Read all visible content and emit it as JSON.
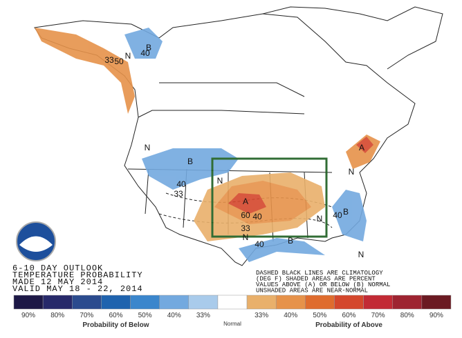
{
  "header": {
    "lines": [
      "6-10 DAY OUTLOOK",
      "TEMPERATURE PROBABILITY",
      "MADE 12 MAY 2014",
      "VALID MAY 18 - 22, 2014"
    ]
  },
  "note": {
    "lines": [
      "DASHED BLACK LINES ARE CLIMATOLOGY",
      "(DEG F) SHADED AREAS ARE PERCENT",
      "VALUES ABOVE (A) OR BELOW (B) NORMAL",
      "UNSHADED AREAS ARE NEAR-NORMAL"
    ]
  },
  "map_labels": [
    "N",
    "B",
    "33",
    "50",
    "40",
    "B",
    "N",
    "40",
    "33",
    "N",
    "A",
    "60",
    "40",
    "33",
    "N",
    "B",
    "40",
    "N",
    "A",
    "N",
    "B",
    "40",
    "N"
  ],
  "legend": {
    "below": [
      {
        "label": "90%",
        "color": "#1d1846"
      },
      {
        "label": "80%",
        "color": "#27296a"
      },
      {
        "label": "70%",
        "color": "#2b4b8e"
      },
      {
        "label": "60%",
        "color": "#1f63ae"
      },
      {
        "label": "50%",
        "color": "#3b86cc"
      },
      {
        "label": "40%",
        "color": "#73a9df"
      },
      {
        "label": "33%",
        "color": "#a9cbeb"
      }
    ],
    "normal": {
      "label": "Normal",
      "color": "#ffffff"
    },
    "above": [
      {
        "label": "33%",
        "color": "#e9b06b"
      },
      {
        "label": "40%",
        "color": "#e6924a"
      },
      {
        "label": "50%",
        "color": "#df6c2e"
      },
      {
        "label": "60%",
        "color": "#d4472c"
      },
      {
        "label": "70%",
        "color": "#c22a35"
      },
      {
        "label": "80%",
        "color": "#9e2431"
      },
      {
        "label": "90%",
        "color": "#6b1a22"
      }
    ],
    "below_title": "Probability of Below",
    "above_title": "Probability of Above"
  }
}
